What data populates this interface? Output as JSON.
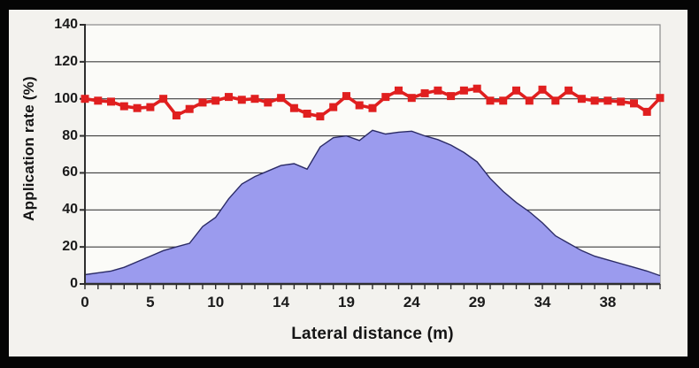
{
  "colors": {
    "frame": "#050505",
    "canvas_bg": "#f3f2ee",
    "plot_bg": "#fbfbf8",
    "plot_border": "#8a8a8a",
    "gridline": "#3f3f3f",
    "axis": "#2e2e2e",
    "area_fill": "#9b9bee",
    "area_edge": "#2b2b66",
    "line_red": "#e01f1f",
    "text": "#1b1b1b"
  },
  "chart_data": {
    "type": "area",
    "subtype": "combo-area-line",
    "title": "",
    "xlabel": "Lateral distance (m)",
    "ylabel": "Application rate (%)",
    "ylim": [
      0,
      140
    ],
    "yticks": [
      0,
      20,
      40,
      60,
      80,
      100,
      120,
      140
    ],
    "xtick_labels": [
      "0",
      "5",
      "10",
      "14",
      "19",
      "24",
      "29",
      "34",
      "38"
    ],
    "xtick_category_positions": [
      0,
      5,
      10,
      15,
      20,
      25,
      30,
      35,
      40
    ],
    "x_categories_count": 45,
    "grid": "horizontal",
    "legend": "none",
    "series": [
      {
        "name": "overlapped-pattern-area",
        "type": "area",
        "color": "#9b9bee",
        "edge_color": "#2b2b66",
        "values": [
          5,
          6,
          7,
          9,
          12,
          15,
          18,
          20,
          22,
          31,
          36,
          46,
          54,
          58,
          61,
          64,
          65,
          62,
          74,
          79,
          80,
          77.5,
          83,
          81,
          82,
          82.5,
          80,
          78,
          75,
          71,
          66,
          57,
          50,
          44,
          39,
          33,
          26,
          22,
          18,
          15,
          13,
          11,
          9,
          7,
          4.5
        ]
      },
      {
        "name": "application-rate-line",
        "type": "line",
        "marker": "square",
        "color": "#e01f1f",
        "values": [
          100,
          99,
          98.5,
          96,
          95,
          95.5,
          100,
          91,
          94.5,
          98,
          99,
          101,
          99.5,
          100,
          98,
          100.5,
          95,
          92,
          90.5,
          95.5,
          101.5,
          96.5,
          95,
          101,
          104.5,
          100.5,
          103,
          104.5,
          101.5,
          104.5,
          105.5,
          99,
          99,
          104.5,
          99,
          105,
          99,
          104.5,
          100,
          99,
          99,
          98.5,
          97.5,
          93,
          100.5
        ]
      }
    ]
  }
}
